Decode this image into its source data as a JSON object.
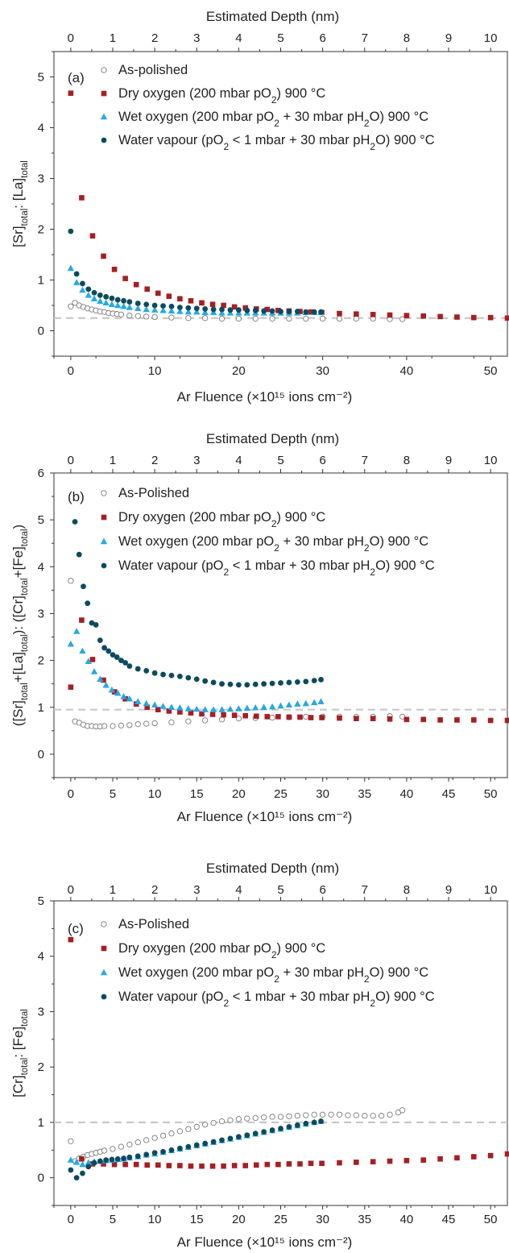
{
  "colors": {
    "as_polished": "#7a7a7a",
    "dry_oxygen": "#a51f24",
    "wet_oxygen": "#27a9e1",
    "water_vapour": "#0d4a60",
    "reference_line": "#c8c8c8",
    "axis": "#333333"
  },
  "chart_data": [
    {
      "type": "scatter",
      "panel_label": "(a)",
      "top_axis_label": "Estimated Depth (nm)",
      "top_ticks": [
        "0",
        "1",
        "2",
        "3",
        "4",
        "5",
        "6",
        "7",
        "8",
        "9",
        "10"
      ],
      "xlabel": "Ar Fluence (×10¹⁵ ions cm⁻²)",
      "ylabel": "[Sr]total: [La]total",
      "xlim": [
        -2,
        52
      ],
      "ylim": [
        -0.5,
        5.5
      ],
      "xticks": [
        0,
        10,
        20,
        30,
        40,
        50
      ],
      "yticks": [
        0,
        1,
        2,
        3,
        4,
        5
      ],
      "reference_line_y": 0.25,
      "legend_position": "top-left",
      "series": [
        {
          "name": "As-polished",
          "marker": "circle-open",
          "color": "#7a7a7a",
          "x": [
            0,
            0.5,
            1,
            1.5,
            2,
            2.5,
            3,
            3.5,
            4,
            4.5,
            5,
            5.5,
            6,
            7,
            8,
            9,
            10,
            12,
            14,
            16,
            18,
            20,
            22,
            24,
            26,
            28,
            30,
            32,
            34,
            36,
            38,
            39.5
          ],
          "y": [
            0.48,
            0.55,
            0.5,
            0.47,
            0.44,
            0.42,
            0.4,
            0.38,
            0.37,
            0.35,
            0.34,
            0.33,
            0.32,
            0.3,
            0.29,
            0.28,
            0.27,
            0.26,
            0.25,
            0.25,
            0.24,
            0.24,
            0.24,
            0.24,
            0.24,
            0.24,
            0.24,
            0.24,
            0.24,
            0.24,
            0.23,
            0.23
          ]
        },
        {
          "name": "Dry oxygen (200 mbar pO2) 900 °C",
          "marker": "square",
          "color": "#a51f24",
          "x": [
            0,
            1.3,
            2.6,
            3.9,
            5.2,
            6.5,
            7.8,
            9.1,
            10.4,
            11.7,
            13,
            14.3,
            15.6,
            16.9,
            18.2,
            19.5,
            20.8,
            22.1,
            23.4,
            24.7,
            26,
            27.3,
            28.6,
            29.9,
            32,
            34,
            36,
            38,
            40,
            42,
            44,
            46,
            48,
            50,
            52
          ],
          "y": [
            4.68,
            2.62,
            1.87,
            1.47,
            1.21,
            1.03,
            0.91,
            0.82,
            0.74,
            0.68,
            0.63,
            0.59,
            0.55,
            0.52,
            0.5,
            0.47,
            0.45,
            0.43,
            0.42,
            0.4,
            0.39,
            0.38,
            0.37,
            0.36,
            0.34,
            0.33,
            0.32,
            0.31,
            0.3,
            0.29,
            0.28,
            0.27,
            0.26,
            0.26,
            0.25
          ]
        },
        {
          "name": "Wet oxygen (200 mbar pO2 + 30 mbar pH2O) 900 °C",
          "marker": "triangle",
          "color": "#27a9e1",
          "x": [
            0,
            0.7,
            1.4,
            2.1,
            2.8,
            3.5,
            4.2,
            4.9,
            5.6,
            6.3,
            7,
            8,
            9,
            10,
            11,
            12,
            13,
            14,
            15,
            16,
            17,
            18,
            19,
            20,
            21,
            22,
            23,
            24,
            25,
            26,
            27,
            28,
            29,
            29.8
          ],
          "y": [
            1.23,
            0.95,
            0.8,
            0.7,
            0.63,
            0.58,
            0.55,
            0.52,
            0.5,
            0.48,
            0.46,
            0.44,
            0.42,
            0.41,
            0.4,
            0.39,
            0.38,
            0.37,
            0.37,
            0.36,
            0.36,
            0.35,
            0.35,
            0.35,
            0.35,
            0.35,
            0.35,
            0.35,
            0.35,
            0.35,
            0.35,
            0.36,
            0.36,
            0.36
          ]
        },
        {
          "name": "Water vapour (pO2 < 1 mbar + 30 mbar pH2O) 900 °C",
          "marker": "circle",
          "color": "#0d4a60",
          "x": [
            0,
            0.7,
            1.4,
            2.1,
            2.8,
            3.5,
            4.2,
            4.9,
            5.6,
            6.3,
            7,
            8,
            9,
            10,
            11,
            12,
            13,
            14,
            15,
            16,
            17,
            18,
            19,
            20,
            21,
            22,
            23,
            24,
            25,
            26,
            27,
            28,
            29,
            29.8
          ],
          "y": [
            1.96,
            1.12,
            0.93,
            0.82,
            0.75,
            0.7,
            0.67,
            0.64,
            0.61,
            0.59,
            0.57,
            0.54,
            0.52,
            0.5,
            0.49,
            0.48,
            0.46,
            0.45,
            0.44,
            0.43,
            0.42,
            0.42,
            0.41,
            0.41,
            0.4,
            0.4,
            0.39,
            0.39,
            0.38,
            0.38,
            0.38,
            0.37,
            0.37,
            0.37
          ]
        }
      ]
    },
    {
      "type": "scatter",
      "panel_label": "(b)",
      "top_axis_label": "Estimated Depth (nm)",
      "top_ticks": [
        "0",
        "1",
        "2",
        "3",
        "4",
        "5",
        "6",
        "7",
        "8",
        "9",
        "10"
      ],
      "xlabel": "Ar Fluence (×10¹⁵ ions cm⁻²)",
      "ylabel": "([Sr]total+[La]total): ([Cr]total+[Fe]total)",
      "xlim": [
        -2,
        52
      ],
      "ylim": [
        -0.5,
        6
      ],
      "xticks": [
        0,
        5,
        10,
        15,
        20,
        25,
        30,
        35,
        40,
        45,
        50
      ],
      "yticks": [
        0,
        1,
        2,
        3,
        4,
        5,
        6
      ],
      "reference_line_y": 0.95,
      "legend_position": "top-left",
      "series": [
        {
          "name": "As-Polished",
          "marker": "circle-open",
          "color": "#7a7a7a",
          "x": [
            0,
            0.5,
            1,
            1.5,
            2,
            2.5,
            3,
            3.5,
            4,
            5,
            6,
            7,
            8,
            9,
            10,
            12,
            14,
            16,
            18,
            20,
            22,
            24,
            26,
            28,
            30,
            32,
            34,
            36,
            38,
            39.5
          ],
          "y": [
            3.7,
            0.7,
            0.67,
            0.63,
            0.6,
            0.6,
            0.59,
            0.59,
            0.6,
            0.6,
            0.61,
            0.62,
            0.64,
            0.65,
            0.66,
            0.68,
            0.7,
            0.72,
            0.74,
            0.76,
            0.77,
            0.78,
            0.79,
            0.8,
            0.8,
            0.8,
            0.8,
            0.8,
            0.81,
            0.8
          ]
        },
        {
          "name": "Dry oxygen (200 mbar pO2) 900 °C",
          "marker": "square",
          "color": "#a51f24",
          "x": [
            0,
            1.3,
            2.6,
            3.9,
            5.2,
            6.5,
            7.8,
            9.1,
            10.4,
            11.7,
            13,
            14.3,
            15.6,
            16.9,
            18.2,
            19.5,
            20.8,
            22.1,
            23.4,
            24.7,
            26,
            27.3,
            28.6,
            29.9,
            32,
            34,
            36,
            38,
            40,
            42,
            44,
            46,
            48,
            50,
            52
          ],
          "y": [
            1.43,
            2.86,
            2.02,
            1.58,
            1.33,
            1.18,
            1.07,
            1.0,
            0.95,
            0.92,
            0.9,
            0.88,
            0.86,
            0.85,
            0.84,
            0.83,
            0.82,
            0.81,
            0.8,
            0.8,
            0.79,
            0.79,
            0.78,
            0.78,
            0.77,
            0.76,
            0.76,
            0.75,
            0.74,
            0.74,
            0.73,
            0.73,
            0.73,
            0.72,
            0.72
          ]
        },
        {
          "name": "Wet oxygen (200 mbar pO2 + 30 mbar pH2O) 900 °C",
          "marker": "triangle",
          "color": "#27a9e1",
          "x": [
            0,
            0.7,
            1.4,
            2.1,
            2.8,
            3.5,
            4.2,
            4.9,
            5.6,
            6.3,
            7,
            8,
            9,
            10,
            11,
            12,
            13,
            14,
            15,
            16,
            17,
            18,
            19,
            20,
            21,
            22,
            23,
            24,
            25,
            26,
            27,
            28,
            29,
            29.8
          ],
          "y": [
            2.35,
            2.62,
            2.2,
            1.98,
            1.76,
            1.6,
            1.47,
            1.37,
            1.3,
            1.23,
            1.18,
            1.12,
            1.08,
            1.05,
            1.02,
            1.0,
            0.99,
            0.97,
            0.96,
            0.95,
            0.95,
            0.95,
            0.96,
            0.97,
            0.98,
            0.99,
            1.0,
            1.01,
            1.03,
            1.05,
            1.07,
            1.08,
            1.1,
            1.12
          ]
        },
        {
          "name": "Water vapour (pO2 < 1 mbar + 30 mbar pH2O) 900 °C",
          "marker": "circle",
          "color": "#0d4a60",
          "x": [
            0.5,
            1,
            1.5,
            2,
            2.5,
            3,
            3.5,
            4,
            4.5,
            5,
            5.5,
            6,
            6.5,
            7,
            8,
            9,
            10,
            11,
            12,
            13,
            14,
            15,
            16,
            17,
            18,
            19,
            20,
            21,
            22,
            23,
            24,
            25,
            26,
            27,
            28,
            29,
            29.8
          ],
          "y": [
            4.96,
            4.26,
            3.58,
            3.22,
            2.8,
            2.76,
            2.43,
            2.27,
            2.2,
            2.12,
            2.07,
            2.0,
            1.95,
            1.88,
            1.82,
            1.78,
            1.73,
            1.7,
            1.68,
            1.66,
            1.63,
            1.6,
            1.56,
            1.53,
            1.5,
            1.49,
            1.48,
            1.48,
            1.49,
            1.5,
            1.51,
            1.52,
            1.53,
            1.54,
            1.55,
            1.57,
            1.59
          ]
        }
      ]
    },
    {
      "type": "scatter",
      "panel_label": "(c)",
      "top_axis_label": "Estimated Depth (nm)",
      "top_ticks": [
        "0",
        "1",
        "2",
        "3",
        "4",
        "5",
        "6",
        "7",
        "8",
        "9",
        "10"
      ],
      "xlabel": "Ar Fluence (×10¹⁵ ions cm⁻²)",
      "ylabel": "[Cr]total: [Fe]total",
      "xlim": [
        -2,
        52
      ],
      "ylim": [
        -0.5,
        5
      ],
      "xticks": [
        0,
        5,
        10,
        15,
        20,
        25,
        30,
        35,
        40,
        45,
        50
      ],
      "yticks": [
        0,
        1,
        2,
        3,
        4,
        5
      ],
      "reference_line_y": 1.0,
      "legend_position": "top-left",
      "series": [
        {
          "name": "As-Polished",
          "marker": "circle-open",
          "color": "#7a7a7a",
          "x": [
            0,
            0.5,
            1,
            1.5,
            2,
            2.5,
            3,
            3.5,
            4,
            5,
            6,
            7,
            8,
            9,
            10,
            11,
            12,
            13,
            14,
            15,
            16,
            17,
            18,
            19,
            20,
            21,
            22,
            23,
            24,
            25,
            26,
            27,
            28,
            29,
            30,
            31,
            32,
            33,
            34,
            35,
            36,
            37,
            38,
            39,
            39.5
          ],
          "y": [
            0.66,
            0.3,
            0.35,
            0.38,
            0.41,
            0.43,
            0.45,
            0.47,
            0.49,
            0.52,
            0.56,
            0.6,
            0.64,
            0.68,
            0.72,
            0.76,
            0.8,
            0.84,
            0.88,
            0.92,
            0.96,
            0.99,
            1.02,
            1.04,
            1.06,
            1.07,
            1.08,
            1.09,
            1.1,
            1.1,
            1.11,
            1.12,
            1.13,
            1.14,
            1.14,
            1.14,
            1.14,
            1.13,
            1.13,
            1.12,
            1.12,
            1.12,
            1.14,
            1.18,
            1.22
          ]
        },
        {
          "name": "Dry oxygen (200 mbar pO2) 900 °C",
          "marker": "square",
          "color": "#a51f24",
          "x": [
            0,
            1.3,
            2.6,
            3.9,
            5.2,
            6.5,
            7.8,
            9.1,
            10.4,
            11.7,
            13,
            14.3,
            15.6,
            16.9,
            18.2,
            19.5,
            20.8,
            22.1,
            23.4,
            24.7,
            26,
            27.3,
            28.6,
            29.9,
            32,
            34,
            36,
            38,
            40,
            42,
            44,
            46,
            48,
            50,
            52
          ],
          "y": [
            4.3,
            0.34,
            0.25,
            0.25,
            0.24,
            0.24,
            0.24,
            0.23,
            0.23,
            0.22,
            0.22,
            0.21,
            0.21,
            0.21,
            0.21,
            0.22,
            0.22,
            0.23,
            0.24,
            0.24,
            0.25,
            0.25,
            0.26,
            0.26,
            0.27,
            0.28,
            0.29,
            0.3,
            0.31,
            0.32,
            0.34,
            0.36,
            0.38,
            0.4,
            0.43
          ]
        },
        {
          "name": "Wet oxygen (200 mbar pO2 + 30 mbar pH2O) 900 °C",
          "marker": "triangle",
          "color": "#27a9e1",
          "x": [
            0,
            0.7,
            1.4,
            2.1,
            2.8,
            3.5,
            4.2,
            4.9,
            5.6,
            6.3,
            7,
            8,
            9,
            10,
            11,
            12,
            13,
            14,
            15,
            16,
            17,
            18,
            19,
            20,
            21,
            22,
            23,
            24,
            25,
            26,
            27,
            28,
            29,
            29.8
          ],
          "y": [
            0.32,
            0.28,
            0.24,
            0.27,
            0.29,
            0.3,
            0.31,
            0.32,
            0.33,
            0.34,
            0.36,
            0.38,
            0.41,
            0.43,
            0.46,
            0.49,
            0.52,
            0.55,
            0.58,
            0.61,
            0.64,
            0.67,
            0.7,
            0.73,
            0.76,
            0.79,
            0.82,
            0.85,
            0.88,
            0.91,
            0.94,
            0.97,
            1.0,
            1.02
          ]
        },
        {
          "name": "Water vapour (pO2 < 1 mbar + 30 mbar pH2O) 900 °C",
          "marker": "circle",
          "color": "#0d4a60",
          "x": [
            0,
            0.7,
            1.4,
            2.1,
            2.8,
            3.5,
            4.2,
            4.9,
            5.6,
            6.3,
            7,
            8,
            9,
            10,
            11,
            12,
            13,
            14,
            15,
            16,
            17,
            18,
            19,
            20,
            21,
            22,
            23,
            24,
            25,
            26,
            27,
            28,
            29,
            29.8
          ],
          "y": [
            0.14,
            0.0,
            0.08,
            0.2,
            0.27,
            0.3,
            0.32,
            0.33,
            0.34,
            0.35,
            0.37,
            0.39,
            0.42,
            0.45,
            0.47,
            0.5,
            0.53,
            0.56,
            0.59,
            0.62,
            0.65,
            0.68,
            0.71,
            0.74,
            0.77,
            0.8,
            0.83,
            0.86,
            0.89,
            0.92,
            0.95,
            0.98,
            1.0,
            1.02
          ]
        }
      ]
    }
  ]
}
